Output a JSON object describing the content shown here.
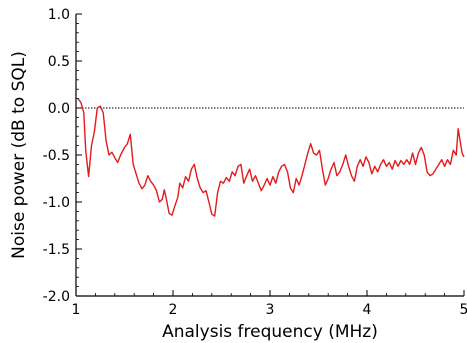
{
  "chart_data": {
    "type": "line",
    "title": "",
    "xlabel": "Analysis frequency (MHz)",
    "ylabel": "Noise power (dB to SQL)",
    "xlim": [
      1,
      5
    ],
    "ylim": [
      -2.0,
      1.0
    ],
    "x_ticks": [
      1,
      2,
      3,
      4,
      5
    ],
    "y_ticks": [
      -2.0,
      -1.5,
      -1.0,
      -0.5,
      0.0,
      0.5,
      1.0
    ],
    "x_tick_labels": [
      "1",
      "2",
      "3",
      "4",
      "5"
    ],
    "y_tick_labels": [
      "-2.0",
      "-1.5",
      "-1.0",
      "-0.5",
      "0.0",
      "0.5",
      "1.0"
    ],
    "reference_line": {
      "y": 0.0,
      "style": "dotted",
      "color": "#000000"
    },
    "grid": false,
    "series": [
      {
        "color": "#e31a1c",
        "points": [
          [
            1.02,
            0.1
          ],
          [
            1.05,
            0.06
          ],
          [
            1.08,
            -0.05
          ],
          [
            1.1,
            -0.45
          ],
          [
            1.13,
            -0.73
          ],
          [
            1.16,
            -0.4
          ],
          [
            1.19,
            -0.25
          ],
          [
            1.22,
            0.0
          ],
          [
            1.25,
            0.02
          ],
          [
            1.28,
            -0.05
          ],
          [
            1.31,
            -0.35
          ],
          [
            1.34,
            -0.5
          ],
          [
            1.37,
            -0.47
          ],
          [
            1.4,
            -0.53
          ],
          [
            1.43,
            -0.58
          ],
          [
            1.46,
            -0.5
          ],
          [
            1.5,
            -0.42
          ],
          [
            1.53,
            -0.38
          ],
          [
            1.56,
            -0.28
          ],
          [
            1.59,
            -0.6
          ],
          [
            1.62,
            -0.7
          ],
          [
            1.65,
            -0.8
          ],
          [
            1.68,
            -0.86
          ],
          [
            1.71,
            -0.82
          ],
          [
            1.74,
            -0.72
          ],
          [
            1.77,
            -0.78
          ],
          [
            1.8,
            -0.82
          ],
          [
            1.83,
            -0.88
          ],
          [
            1.86,
            -1.0
          ],
          [
            1.89,
            -0.97
          ],
          [
            1.91,
            -0.87
          ],
          [
            1.93,
            -0.96
          ],
          [
            1.96,
            -1.12
          ],
          [
            1.99,
            -1.14
          ],
          [
            2.02,
            -1.04
          ],
          [
            2.05,
            -0.95
          ],
          [
            2.07,
            -0.8
          ],
          [
            2.1,
            -0.85
          ],
          [
            2.13,
            -0.73
          ],
          [
            2.16,
            -0.78
          ],
          [
            2.19,
            -0.65
          ],
          [
            2.22,
            -0.6
          ],
          [
            2.25,
            -0.75
          ],
          [
            2.28,
            -0.85
          ],
          [
            2.31,
            -0.9
          ],
          [
            2.34,
            -0.88
          ],
          [
            2.37,
            -1.0
          ],
          [
            2.4,
            -1.13
          ],
          [
            2.43,
            -1.15
          ],
          [
            2.46,
            -0.9
          ],
          [
            2.49,
            -0.78
          ],
          [
            2.52,
            -0.8
          ],
          [
            2.55,
            -0.74
          ],
          [
            2.58,
            -0.78
          ],
          [
            2.61,
            -0.68
          ],
          [
            2.64,
            -0.72
          ],
          [
            2.67,
            -0.62
          ],
          [
            2.7,
            -0.6
          ],
          [
            2.73,
            -0.8
          ],
          [
            2.76,
            -0.72
          ],
          [
            2.79,
            -0.65
          ],
          [
            2.82,
            -0.78
          ],
          [
            2.85,
            -0.72
          ],
          [
            2.88,
            -0.8
          ],
          [
            2.91,
            -0.88
          ],
          [
            2.94,
            -0.82
          ],
          [
            2.97,
            -0.75
          ],
          [
            3.0,
            -0.82
          ],
          [
            3.03,
            -0.73
          ],
          [
            3.06,
            -0.8
          ],
          [
            3.09,
            -0.68
          ],
          [
            3.12,
            -0.62
          ],
          [
            3.15,
            -0.6
          ],
          [
            3.18,
            -0.68
          ],
          [
            3.21,
            -0.85
          ],
          [
            3.24,
            -0.9
          ],
          [
            3.27,
            -0.75
          ],
          [
            3.3,
            -0.82
          ],
          [
            3.33,
            -0.72
          ],
          [
            3.36,
            -0.6
          ],
          [
            3.39,
            -0.48
          ],
          [
            3.42,
            -0.38
          ],
          [
            3.45,
            -0.48
          ],
          [
            3.48,
            -0.5
          ],
          [
            3.51,
            -0.45
          ],
          [
            3.54,
            -0.65
          ],
          [
            3.57,
            -0.82
          ],
          [
            3.6,
            -0.75
          ],
          [
            3.63,
            -0.65
          ],
          [
            3.66,
            -0.58
          ],
          [
            3.69,
            -0.72
          ],
          [
            3.72,
            -0.68
          ],
          [
            3.75,
            -0.6
          ],
          [
            3.78,
            -0.5
          ],
          [
            3.81,
            -0.62
          ],
          [
            3.84,
            -0.72
          ],
          [
            3.87,
            -0.78
          ],
          [
            3.9,
            -0.62
          ],
          [
            3.93,
            -0.55
          ],
          [
            3.96,
            -0.62
          ],
          [
            3.99,
            -0.52
          ],
          [
            4.02,
            -0.58
          ],
          [
            4.05,
            -0.7
          ],
          [
            4.08,
            -0.62
          ],
          [
            4.11,
            -0.68
          ],
          [
            4.14,
            -0.6
          ],
          [
            4.17,
            -0.55
          ],
          [
            4.2,
            -0.62
          ],
          [
            4.23,
            -0.58
          ],
          [
            4.26,
            -0.65
          ],
          [
            4.29,
            -0.56
          ],
          [
            4.32,
            -0.62
          ],
          [
            4.35,
            -0.56
          ],
          [
            4.38,
            -0.6
          ],
          [
            4.41,
            -0.55
          ],
          [
            4.44,
            -0.6
          ],
          [
            4.47,
            -0.48
          ],
          [
            4.5,
            -0.6
          ],
          [
            4.53,
            -0.48
          ],
          [
            4.56,
            -0.42
          ],
          [
            4.59,
            -0.5
          ],
          [
            4.62,
            -0.68
          ],
          [
            4.65,
            -0.72
          ],
          [
            4.68,
            -0.7
          ],
          [
            4.71,
            -0.65
          ],
          [
            4.74,
            -0.6
          ],
          [
            4.77,
            -0.55
          ],
          [
            4.8,
            -0.62
          ],
          [
            4.83,
            -0.55
          ],
          [
            4.86,
            -0.6
          ],
          [
            4.89,
            -0.45
          ],
          [
            4.92,
            -0.5
          ],
          [
            4.94,
            -0.22
          ],
          [
            4.96,
            -0.35
          ],
          [
            4.98,
            -0.48
          ],
          [
            5.0,
            -0.52
          ]
        ]
      }
    ]
  }
}
